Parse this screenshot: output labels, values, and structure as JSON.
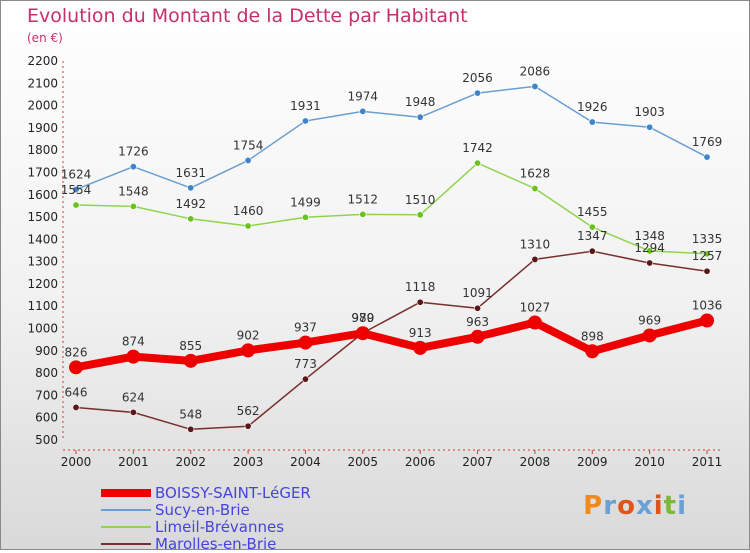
{
  "title": "Evolution du Montant de la Dette par Habitant",
  "subtitle": "(en €)",
  "logo": {
    "text": "Proxiti",
    "letter_colors": [
      "#f08a1c",
      "#6aa0d4",
      "#e0541c",
      "#6aa0d4",
      "#e0541c",
      "#7db83a",
      "#6aa0d4"
    ]
  },
  "chart_data": {
    "type": "line",
    "title": "Evolution du Montant de la Dette par Habitant",
    "subtitle": "(en €)",
    "x": [
      "2000",
      "2001",
      "2002",
      "2003",
      "2004",
      "2005",
      "2006",
      "2007",
      "2008",
      "2009",
      "2010",
      "2011"
    ],
    "y_ticks": [
      500,
      600,
      700,
      800,
      900,
      1000,
      1100,
      1200,
      1300,
      1400,
      1500,
      1600,
      1700,
      1800,
      1900,
      2000,
      2100,
      2200
    ],
    "ylim": [
      500,
      2200
    ],
    "grid": false,
    "legend_position": "bottom-left",
    "series": [
      {
        "name": "BOISSY-SAINT-LéGER",
        "color": "#ee0000",
        "values": [
          826,
          874,
          855,
          902,
          937,
          979,
          913,
          963,
          1027,
          898,
          969,
          1036
        ]
      },
      {
        "name": "Sucy-en-Brie",
        "color": "#6b9fd0",
        "values": [
          1624,
          1726,
          1631,
          1754,
          1931,
          1974,
          1948,
          2056,
          2086,
          1926,
          1903,
          1769
        ]
      },
      {
        "name": "Limeil-Brévannes",
        "color": "#8fd44f",
        "values": [
          1554,
          1548,
          1492,
          1460,
          1499,
          1512,
          1510,
          1742,
          1628,
          1455,
          1348,
          1335
        ]
      },
      {
        "name": "Marolles-en-Brie",
        "color": "#7a2f2f",
        "values": [
          646,
          624,
          548,
          562,
          773,
          980,
          1118,
          1091,
          1310,
          1347,
          1294,
          1257
        ]
      }
    ]
  }
}
